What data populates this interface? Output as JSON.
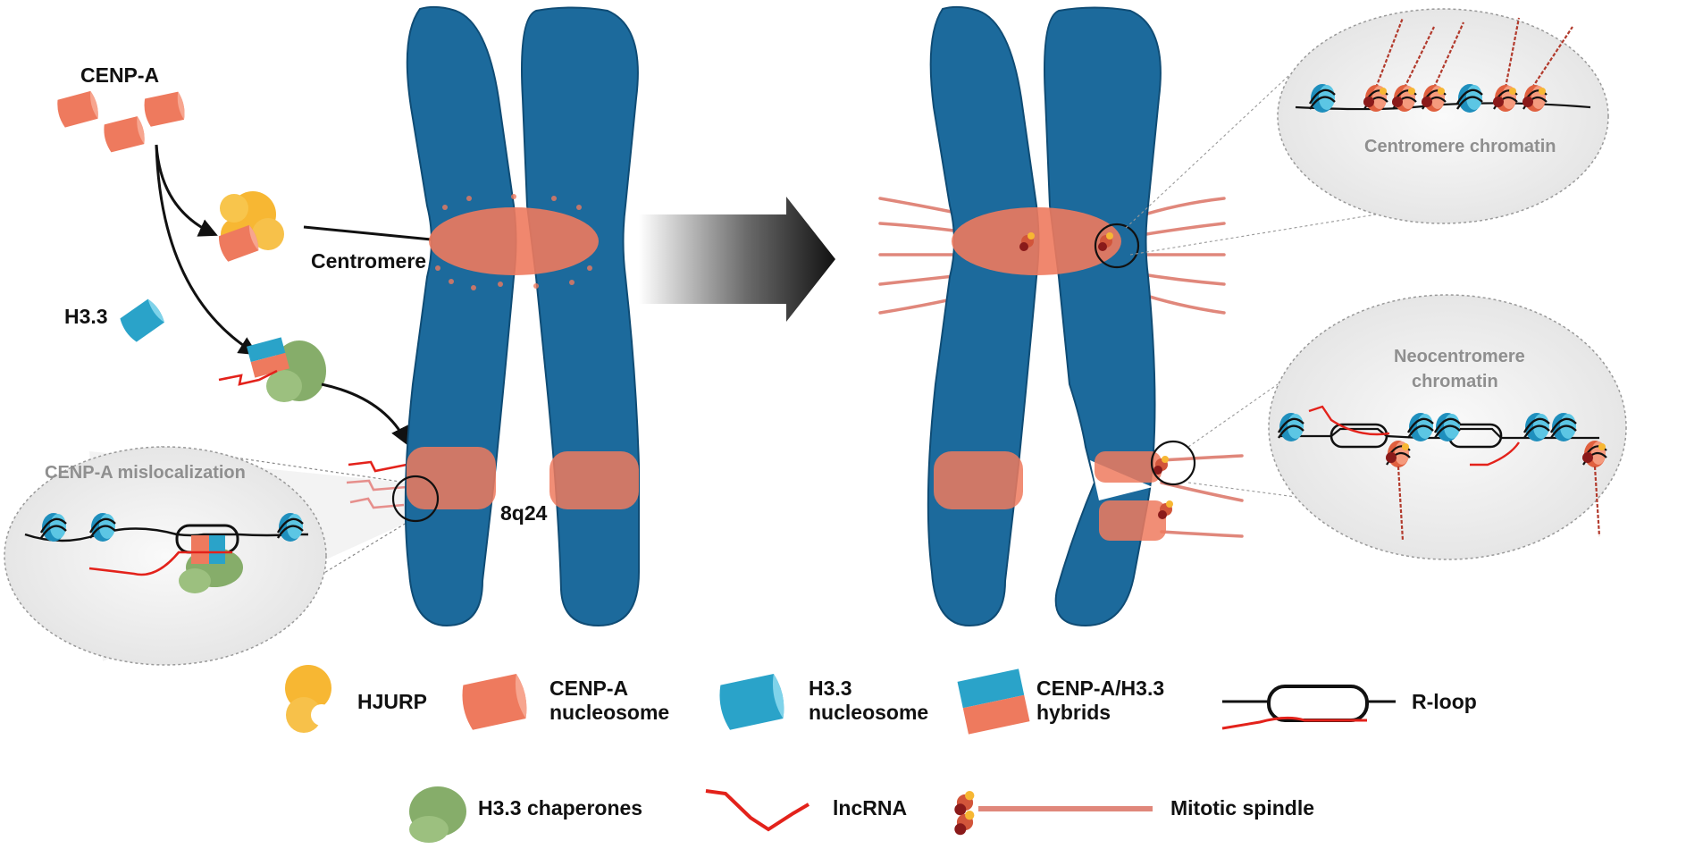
{
  "colors": {
    "chromosome": "#1c6a9c",
    "chromosome_edge": "#0f4c75",
    "cenpa": "#ee7a5e",
    "h33": "#3fb4d6",
    "hjurp": "#f7b733",
    "chaperone": "#86ad6a",
    "lncrna": "#e3221b",
    "spindle": "#e0877b",
    "callout_fill": "#efefef"
  },
  "left_panel": {
    "cenpa_label": "CENP-A",
    "h33_label": "H3.3",
    "centromere_label": "Centromere",
    "locus_label": "8q24",
    "mislocalization_title": "CENP-A mislocalization"
  },
  "right_panel": {
    "centromere_callout_title": "Centromere chromatin",
    "neocentromere_callout_title_line1": "Neocentromere",
    "neocentromere_callout_title_line2": "chromatin"
  },
  "legend": {
    "hjurp": "HJURP",
    "cenpa_line1": "CENP-A",
    "cenpa_line2": "nucleosome",
    "h33_line1": "H3.3",
    "h33_line2": "nucleosome",
    "hybrid_line1": "CENP-A/H3.3",
    "hybrid_line2": "hybrids",
    "rloop": "R-loop",
    "chaperones": "H3.3 chaperones",
    "lncrna": "lncRNA",
    "spindle": "Mitotic spindle"
  }
}
